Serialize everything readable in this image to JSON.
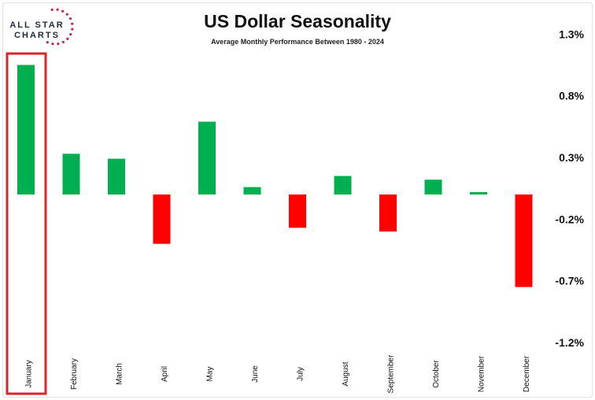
{
  "logo": {
    "line1": "ALL STAR",
    "line2": "CHARTS"
  },
  "chart_data": {
    "type": "bar",
    "title": "US Dollar Seasonality",
    "subtitle": "Average Monthly Performance Between 1980 - 2024",
    "categories": [
      "January",
      "February",
      "March",
      "April",
      "May",
      "June",
      "July",
      "August",
      "September",
      "October",
      "November",
      "December"
    ],
    "values": [
      1.05,
      0.33,
      0.29,
      -0.4,
      0.59,
      0.06,
      -0.27,
      0.15,
      -0.3,
      0.12,
      0.02,
      -0.75
    ],
    "unit": "%",
    "xlabel": "",
    "ylabel": "",
    "ylim": [
      -1.2,
      1.3
    ],
    "yticks": [
      1.3,
      0.8,
      0.3,
      -0.2,
      -0.7,
      -1.2
    ],
    "ytick_labels": [
      "1.3%",
      "0.8%",
      "0.3%",
      "-0.2%",
      "-0.7%",
      "-1.2%"
    ],
    "y_axis_position": "right",
    "grid": false,
    "highlighted_category": "January",
    "colors": {
      "positive": "#00b050",
      "negative": "#ff0000",
      "highlight": "#d9262b"
    }
  }
}
